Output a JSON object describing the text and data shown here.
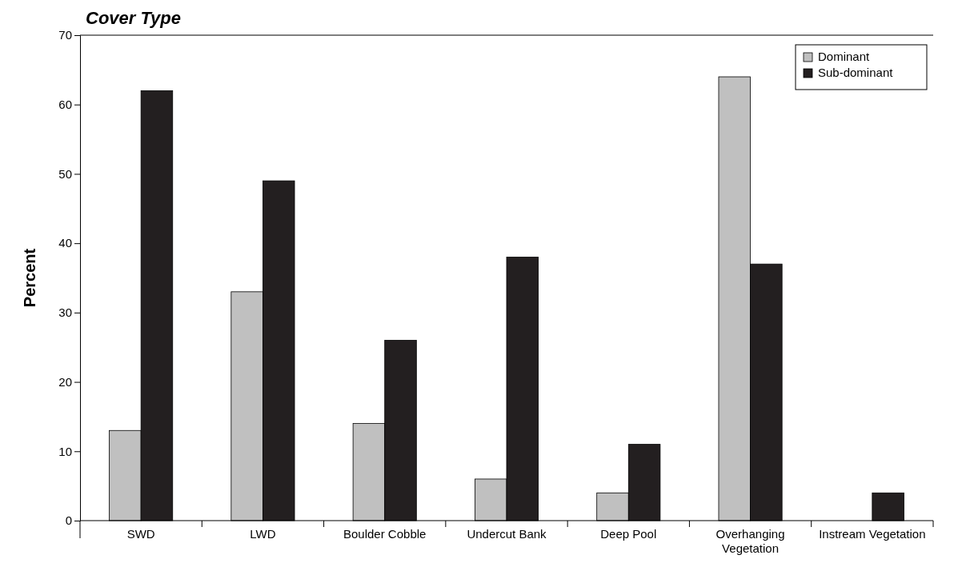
{
  "chart_data": {
    "type": "bar",
    "title": "Cover Type",
    "ylabel": "Percent",
    "categories": [
      "SWD",
      "LWD",
      "Boulder Cobble",
      "Undercut Bank",
      "Deep Pool",
      "Overhanging Vegetation",
      "Instream Vegetation"
    ],
    "series": [
      {
        "name": "Dominant",
        "color": "#c0c0c0",
        "values": [
          13,
          33,
          14,
          6,
          4,
          64,
          0
        ]
      },
      {
        "name": "Sub-dominant",
        "color": "#231f20",
        "values": [
          62,
          49,
          26,
          38,
          11,
          37,
          4
        ]
      }
    ],
    "ylim": [
      0,
      70
    ],
    "yticks": [
      0,
      10,
      20,
      30,
      40,
      50,
      60,
      70
    ],
    "legend": "top right",
    "grid": false
  }
}
